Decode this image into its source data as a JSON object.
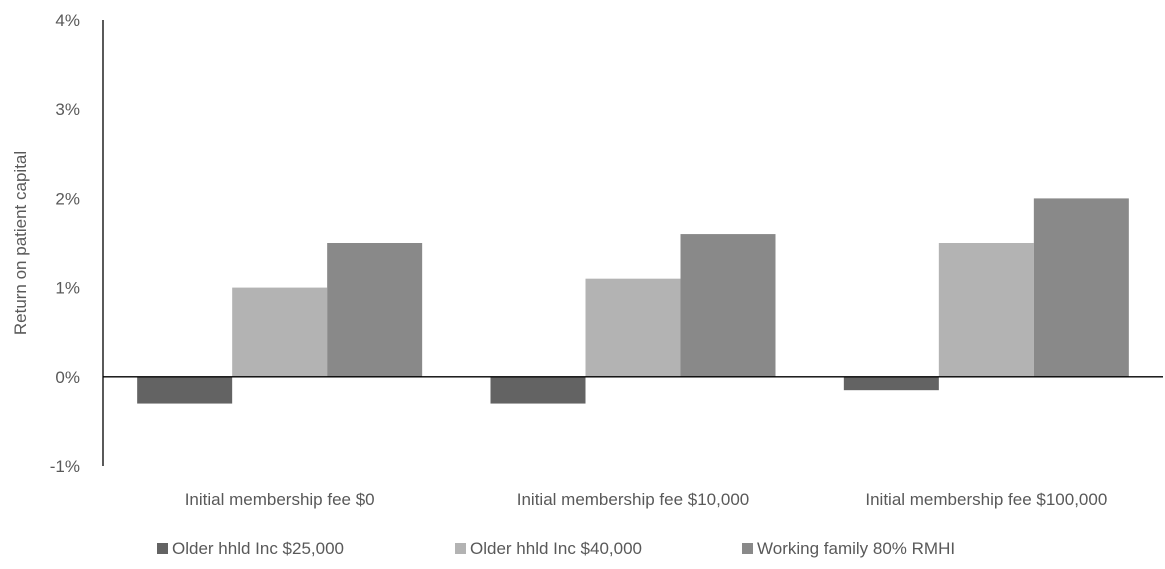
{
  "chart_data": {
    "type": "bar",
    "title": "",
    "xlabel": "",
    "ylabel": "Return on patient capital",
    "ylim": [
      -1,
      4
    ],
    "yticks": [
      "-1%",
      "0%",
      "1%",
      "2%",
      "3%",
      "4%"
    ],
    "ytick_values": [
      -1,
      0,
      1,
      2,
      3,
      4
    ],
    "categories": [
      "Initial membership fee $0",
      "Initial membership fee $10,000",
      "Initial membership fee $100,000"
    ],
    "series": [
      {
        "name": "Older hhld Inc $25,000",
        "values": [
          -0.3,
          -0.3,
          -0.15
        ],
        "color": "#636363"
      },
      {
        "name": "Older hhld Inc $40,000",
        "values": [
          1.0,
          1.1,
          1.5
        ],
        "color": "#b3b3b3"
      },
      {
        "name": "Working family 80% RMHI",
        "values": [
          1.5,
          1.6,
          2.0
        ],
        "color": "#898989"
      }
    ],
    "grid": false,
    "legend_position": "bottom"
  }
}
